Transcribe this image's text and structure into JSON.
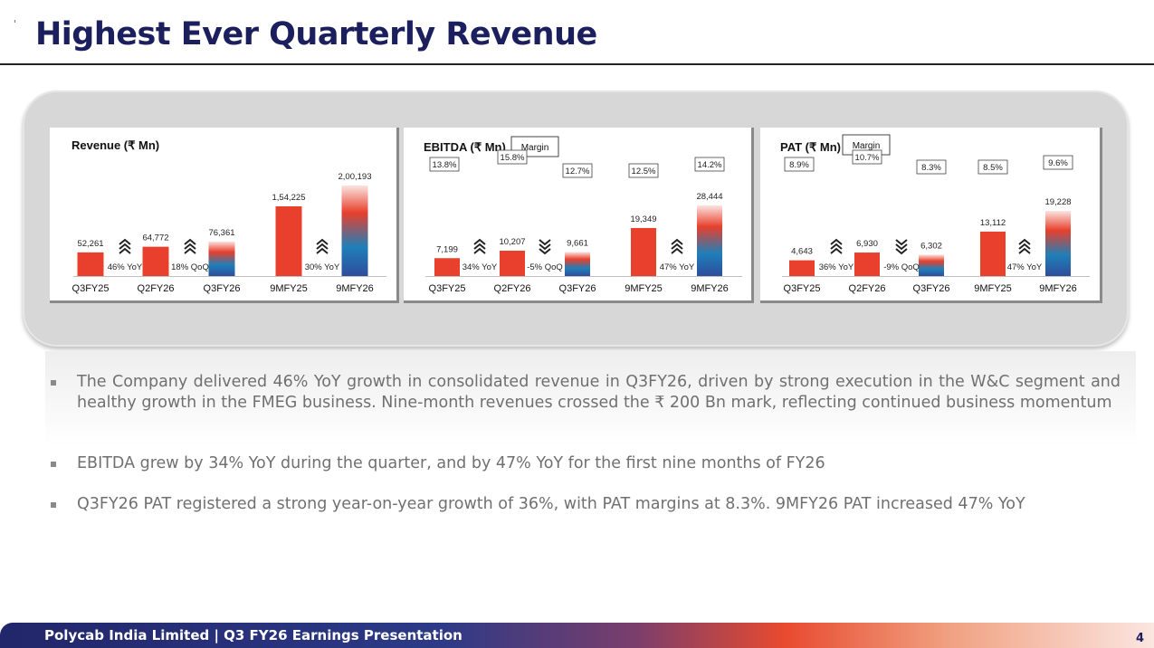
{
  "slide": {
    "title": "Highest Ever Quarterly Revenue",
    "footer_text": "Polycab India Limited | Q3 FY26 Earnings Presentation",
    "page_number": "4"
  },
  "colors": {
    "navy": "#1c1f5e",
    "red": "#e8402c",
    "blue": "#2e4d9c"
  },
  "chart_data": [
    {
      "type": "bar",
      "title": "Revenue (₹ Mn)",
      "categories": [
        "Q3FY25",
        "Q2FY26",
        "Q3FY26",
        "9MFY25",
        "9MFY26"
      ],
      "values": [
        52261,
        64772,
        76361,
        154225,
        200193
      ],
      "value_labels": [
        "52,261",
        "64,772",
        "76,361",
        "1,54,225",
        "2,00,193"
      ],
      "growth": [
        {
          "label": "46% YoY",
          "direction": "up"
        },
        {
          "label": "18% QoQ",
          "direction": "up"
        },
        {
          "label": "30% YoY",
          "direction": "up"
        }
      ]
    },
    {
      "type": "bar",
      "title": "EBITDA (₹ Mn)",
      "margin_label": "Margin",
      "categories": [
        "Q3FY25",
        "Q2FY26",
        "Q3FY26",
        "9MFY25",
        "9MFY26"
      ],
      "values": [
        7199,
        10207,
        9661,
        19349,
        28444
      ],
      "value_labels": [
        "7,199",
        "10,207",
        "9,661",
        "19,349",
        "28,444"
      ],
      "margins": [
        "13.8%",
        "15.8%",
        "12.7%",
        "12.5%",
        "14.2%"
      ],
      "growth": [
        {
          "label": "34% YoY",
          "direction": "up"
        },
        {
          "label": "-5% QoQ",
          "direction": "down"
        },
        {
          "label": "47% YoY",
          "direction": "up"
        }
      ]
    },
    {
      "type": "bar",
      "title": "PAT (₹ Mn)",
      "margin_label": "Margin",
      "categories": [
        "Q3FY25",
        "Q2FY26",
        "Q3FY26",
        "9MFY25",
        "9MFY26"
      ],
      "values": [
        4643,
        6930,
        6302,
        13112,
        19228
      ],
      "value_labels": [
        "4,643",
        "6,930",
        "6,302",
        "13,112",
        "19,228"
      ],
      "margins": [
        "8.9%",
        "10.7%",
        "8.3%",
        "8.5%",
        "9.6%"
      ],
      "growth": [
        {
          "label": "36% YoY",
          "direction": "up"
        },
        {
          "label": "-9% QoQ",
          "direction": "down"
        },
        {
          "label": "47% YoY",
          "direction": "up"
        }
      ]
    }
  ],
  "bullets": [
    "The Company delivered 46% YoY growth in consolidated revenue in Q3FY26, driven by strong execution in the W&C segment and healthy growth in the FMEG business. Nine-month revenues crossed the ₹ 200 Bn mark, reflecting continued business momentum",
    "EBITDA grew by 34% YoY during the quarter, and by 47% YoY for the first nine months of FY26",
    "Q3FY26 PAT registered a strong year-on-year growth of 36%, with PAT margins at 8.3%. 9MFY26 PAT increased 47% YoY"
  ]
}
